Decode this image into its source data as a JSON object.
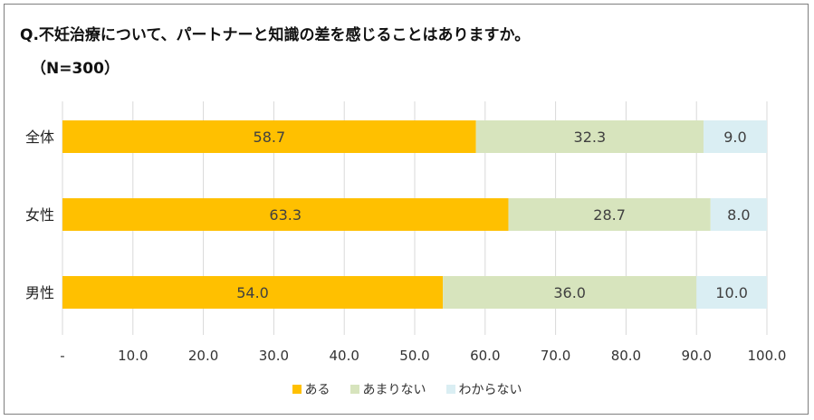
{
  "chart_data": {
    "type": "bar",
    "orientation": "horizontal",
    "stacked": true,
    "title": "Q.不妊治療について、パートナーと知識の差を感じることはありますか。",
    "subtitle": "（N=300）",
    "categories": [
      "全体",
      "女性",
      "男性"
    ],
    "series": [
      {
        "name": "ある",
        "values": [
          58.7,
          63.3,
          54.0
        ],
        "labels": [
          "58.7",
          "63.3",
          "54.0"
        ],
        "color": "#FFC000"
      },
      {
        "name": "あまりない",
        "values": [
          32.3,
          28.7,
          36.0
        ],
        "labels": [
          "32.3",
          "28.7",
          "36.0"
        ],
        "color": "#D7E4BD"
      },
      {
        "name": "わからない",
        "values": [
          9.0,
          8.0,
          10.0
        ],
        "labels": [
          "9.0",
          "8.0",
          "10.0"
        ],
        "color": "#DAEEF3"
      }
    ],
    "xlim": [
      0,
      100
    ],
    "xticks": [
      0,
      10,
      20,
      30,
      40,
      50,
      60,
      70,
      80,
      90,
      100
    ],
    "xtick_labels": [
      "-",
      "10.0",
      "20.0",
      "30.0",
      "40.0",
      "50.0",
      "60.0",
      "70.0",
      "80.0",
      "90.0",
      "100.0"
    ],
    "grid": true,
    "legend_position": "bottom"
  }
}
